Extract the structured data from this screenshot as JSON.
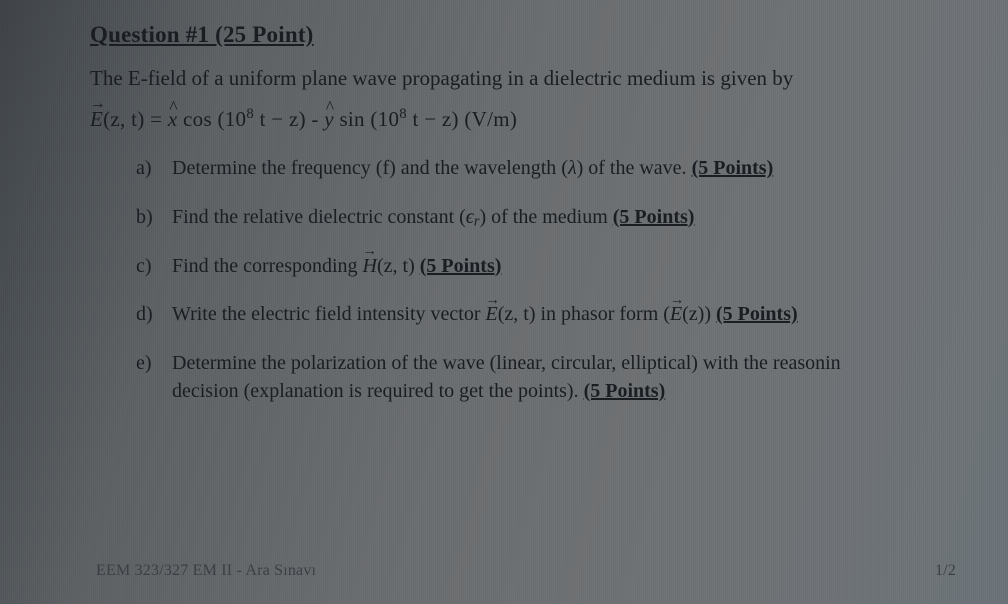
{
  "colors": {
    "text": "#1a1d22",
    "footer_text": "#3a3f45",
    "bg_gradient": [
      "#3e4246",
      "#4a4f53",
      "#5d6164",
      "#6a6d6f",
      "#6f7274",
      "#6c7378"
    ]
  },
  "typography": {
    "title_fontsize": 23,
    "stem_fontsize": 21,
    "formula_fontsize": 21,
    "item_fontsize": 20,
    "footer_fontsize": 16,
    "family": "Times New Roman"
  },
  "question": {
    "title": "Question #1 (25 Point)",
    "stem": "The E-field of a uniform plane wave propagating in a dielectric medium is given by",
    "formula": {
      "lhs_symbol": "E",
      "lhs_args": "(z, t)",
      "eq": " = ",
      "term1_hat": "x",
      "term1_rest": " cos (10",
      "exp": "8",
      "term1_tail": " t − z) - ",
      "term2_hat": "y",
      "term2_rest": " sin (10",
      "term2_tail": " t − z) (V/m)"
    },
    "items": [
      {
        "label": "a)",
        "pre": "Determine the frequency (f) and the wavelength (",
        "sym": "λ",
        "mid": ") of the wave. ",
        "points": "(5 Points)"
      },
      {
        "label": "b)",
        "pre": "Find the relative dielectric constant (",
        "sym": "ϵ",
        "sub": "r",
        "mid": ") of the medium  ",
        "points": "(5 Points)"
      },
      {
        "label": "c)",
        "pre": "Find the corresponding ",
        "vec": "H",
        "args": "(z, t) ",
        "points": "(5 Points)"
      },
      {
        "label": "d)",
        "pre": "Write the electric field intensity vector ",
        "vec": "E",
        "args": "(z, t)",
        "mid": " in phasor form (",
        "vec2": "E",
        "args2": "(z)) ",
        "points": "(5 Points)"
      },
      {
        "label": "e)",
        "line1": "Determine the polarization of the wave (linear, circular, elliptical) with the reasonin",
        "line2_pre": "decision (explanation is required to get the points). ",
        "points": "(5 Points)"
      }
    ]
  },
  "footer": {
    "left": "EEM 323/327 EM II - Ara Sınavı",
    "right": "1/2"
  }
}
